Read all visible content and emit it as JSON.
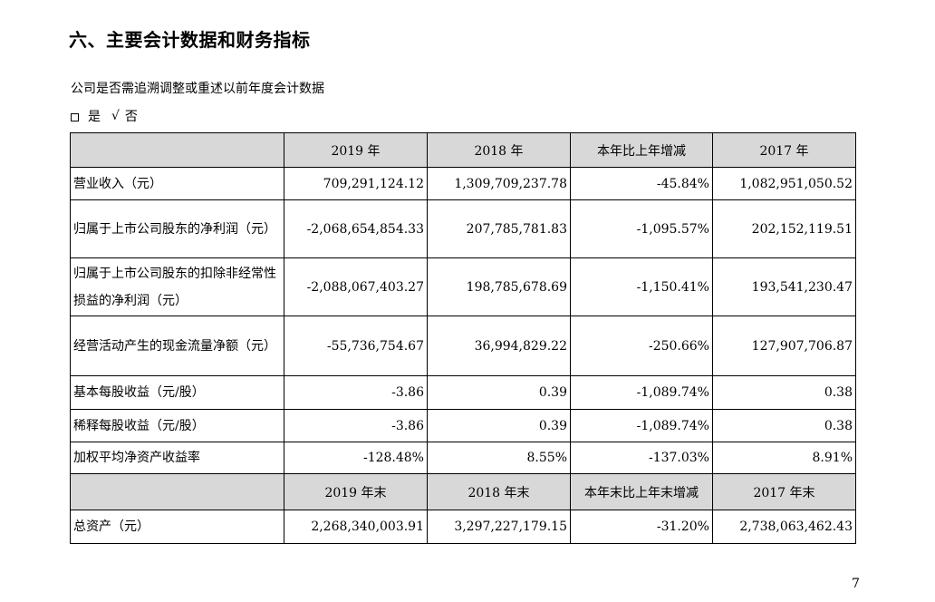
{
  "section_title": "六、主要会计数据和财务指标",
  "question": "公司是否需追溯调整或重述以前年度会计数据",
  "options": {
    "yes_label": "是",
    "check_mark": "√",
    "no_label": "否"
  },
  "table": {
    "header": [
      "",
      "2019 年",
      "2018 年",
      "本年比上年增减",
      "2017 年"
    ],
    "rows": [
      {
        "label": "营业收入（元）",
        "values": [
          "709,291,124.12",
          "1,309,709,237.78",
          "-45.84%",
          "1,082,951,050.52"
        ]
      },
      {
        "label": "归属于上市公司股东的净利润（元）",
        "values": [
          "-2,068,654,854.33",
          "207,785,781.83",
          "-1,095.57%",
          "202,152,119.51"
        ]
      },
      {
        "label": "归属于上市公司股东的扣除非经常性损益的净利润（元）",
        "values": [
          "-2,088,067,403.27",
          "198,785,678.69",
          "-1,150.41%",
          "193,541,230.47"
        ]
      },
      {
        "label": "经营活动产生的现金流量净额（元）",
        "values": [
          "-55,736,754.67",
          "36,994,829.22",
          "-250.66%",
          "127,907,706.87"
        ]
      },
      {
        "label": "基本每股收益（元/股）",
        "values": [
          "-3.86",
          "0.39",
          "-1,089.74%",
          "0.38"
        ]
      },
      {
        "label": "稀释每股收益（元/股）",
        "values": [
          "-3.86",
          "0.39",
          "-1,089.74%",
          "0.38"
        ]
      },
      {
        "label": "加权平均净资产收益率",
        "values": [
          "-128.48%",
          "8.55%",
          "-137.03%",
          "8.91%"
        ]
      }
    ],
    "header2": [
      "",
      "2019 年末",
      "2018 年末",
      "本年末比上年末增减",
      "2017 年末"
    ],
    "rows2": [
      {
        "label": "总资产（元）",
        "values": [
          "2,268,340,003.91",
          "3,297,227,179.15",
          "-31.20%",
          "2,738,063,462.43"
        ]
      }
    ]
  },
  "page_number": "7"
}
